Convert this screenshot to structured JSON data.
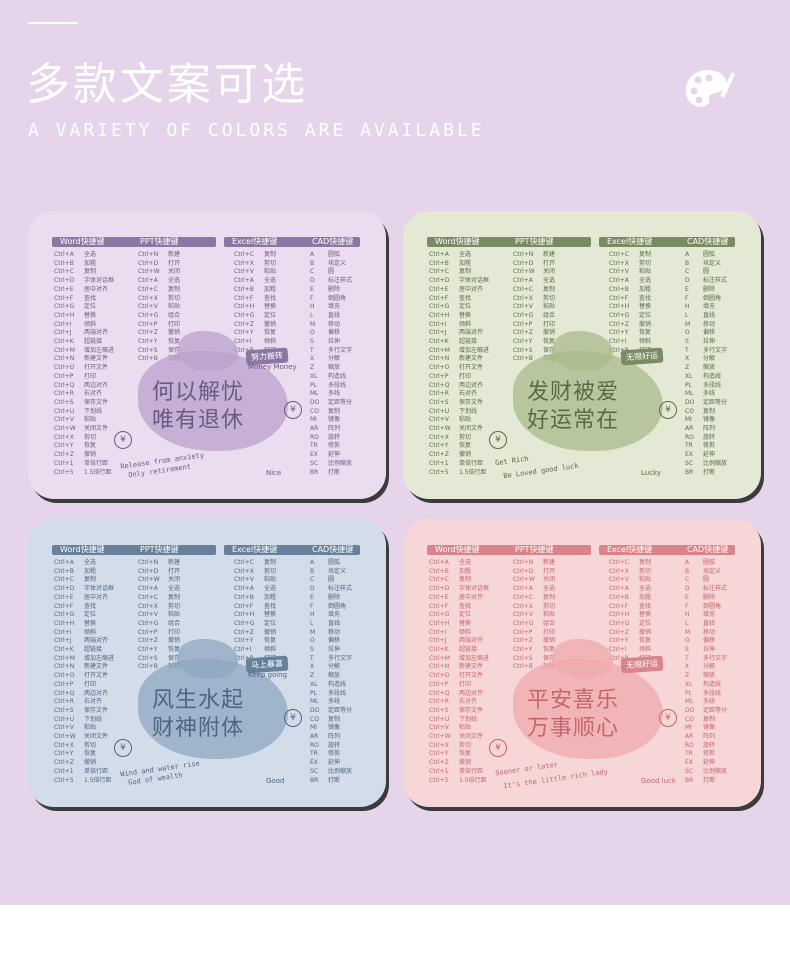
{
  "header": {
    "title_cn": "多款文案可选",
    "title_en": "A VARIETY OF COLORS ARE AVAILABLE",
    "palette_icon": "palette-icon"
  },
  "labels": {
    "word": "Word快捷键",
    "ppt": "PPT快捷键",
    "excel": "Excel快捷键",
    "cad": "CAD快捷键"
  },
  "columns": {
    "word_keys": "Ctrl+A\nCtrl+B\nCtrl+C\nCtrl+D\nCtrl+E\nCtrl+F\nCtrl+G\nCtrl+H\nCtrl+I\nCtrl+J\nCtrl+K\nCtrl+M\nCtrl+N\nCtrl+O\nCtrl+P\nCtrl+Q\nCtrl+R\nCtrl+S\nCtrl+U\nCtrl+V\nCtrl+W\nCtrl+X\nCtrl+Y\nCtrl+Z\nCtrl+1\nCtrl+5",
    "word_desc": "全选\n加粗\n复制\n字体对话框\n居中对齐\n查找\n定位\n替换\n倾斜\n两端对齐\n超链接\n增加左缩进\n新建文件\n打开文件\n打印\n两边对齐\n右对齐\n保存文件\n下划线\n粘贴\n关闭文件\n剪切\n恢复\n撤销\n单倍行距\n1.5倍行距",
    "ppt_keys": "Ctrl+N\nCtrl+D\nCtrl+W\nCtrl+A\nCtrl+C\nCtrl+X\nCtrl+V\nCtrl+G\nCtrl+P\nCtrl+Z\nCtrl+Y\nCtrl+S\nCtrl+B",
    "ppt_desc": "新建\n打开\n关闭\n全选\n复制\n剪切\n粘贴\n组合\n打印\n撤销\n恢复\n保存\n加粗",
    "excel_keys": "Ctrl+C\nCtrl+X\nCtrl+V\nCtrl+A\nCtrl+B\nCtrl+F\nCtrl+H\nCtrl+G\nCtrl+Z\nCtrl+Y\nCtrl+I\nCtrl+P",
    "excel_desc": "复制\n剪切\n粘贴\n全选\n加粗\n查找\n替换\n定位\n撤销\n恢复\n倾斜\n打印",
    "cad_keys": "A\nB\nC\nD\nE\nF\nH\nL\nM\nO\nS\nT\nX\nZ\nXL\nPL\nML\nDO\nCO\nMI\nAR\nRO\nTR\nEX\nSC\nBR",
    "cad_desc": "圆弧\n块定义\n圆\n标注样式\n删除\n倒圆角\n填充\n直线\n移动\n偏移\n拉伸\n多行文字\n分解\n缩放\n构造线\n多段线\n多线\n定距等分\n复制\n镜像\n阵列\n旋转\n修剪\n延伸\n比例缩放\n打断"
  },
  "pads": [
    {
      "theme": "purple",
      "colors": {
        "bg": "#ecdcf0",
        "accent": "#8c77a4",
        "blob": "#b9a1cc",
        "text": "#6b5a7f"
      },
      "slogan_line1": "何以解忧",
      "slogan_line2": "唯有退休",
      "badge": "努力搬砖",
      "badge_sub": "Money Money",
      "english_line1": "Release from anxiety",
      "english_line2": "Only retirement",
      "corner_tag": "Nice"
    },
    {
      "theme": "green",
      "colors": {
        "bg": "#e3e9d4",
        "accent": "#7a8b62",
        "blob": "#a8b98b",
        "text": "#5b6b47"
      },
      "slogan_line1": "发财被爱",
      "slogan_line2": "好运常在",
      "badge": "无限好运",
      "badge_sub": "",
      "english_line1": "Get Rich",
      "english_line2": "Be Loved good luck",
      "corner_tag": "Lucky"
    },
    {
      "theme": "blue",
      "colors": {
        "bg": "#d3dce9",
        "accent": "#67809b",
        "blob": "#8fa7c0",
        "text": "#4f6581"
      },
      "slogan_line1": "风生水起",
      "slogan_line2": "财神附体",
      "badge": "马上暴富",
      "badge_sub": "Keep going",
      "english_line1": "Wind and water rise",
      "english_line2": "God of wealth",
      "corner_tag": "Good"
    },
    {
      "theme": "pink",
      "colors": {
        "bg": "#f6d6d7",
        "accent": "#d88489",
        "blob": "#f0a9ac",
        "text": "#c5656c"
      },
      "slogan_line1": "平安喜乐",
      "slogan_line2": "万事顺心",
      "badge": "无限好运",
      "badge_sub": "",
      "english_line1": "Sooner or later",
      "english_line2": "It's the little rich lady",
      "corner_tag": "Good luck"
    }
  ]
}
